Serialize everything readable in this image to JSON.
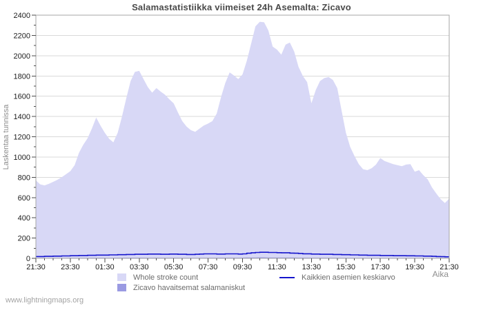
{
  "watermark": "www.lightningmaps.org",
  "chart_data": {
    "type": "area",
    "title": "Salamastatistiikka viimeiset 24h Asemalta: Zicavo",
    "xlabel": "Aika",
    "ylabel": "Laskentaa tunnissa",
    "ylim": [
      0,
      2400
    ],
    "y_tick_step": 200,
    "y_minor_step": 100,
    "x_minor_every": 2,
    "x_major_every": 8,
    "grid": "horizontal",
    "legend_position": "bottom",
    "x": [
      "21:30",
      "21:45",
      "22:00",
      "22:15",
      "22:30",
      "22:45",
      "23:00",
      "23:15",
      "23:30",
      "23:45",
      "00:00",
      "00:15",
      "00:30",
      "00:45",
      "01:00",
      "01:15",
      "01:30",
      "01:45",
      "02:00",
      "02:15",
      "02:30",
      "02:45",
      "03:00",
      "03:15",
      "03:30",
      "03:45",
      "04:00",
      "04:15",
      "04:30",
      "04:45",
      "05:00",
      "05:15",
      "05:30",
      "05:45",
      "06:00",
      "06:15",
      "06:30",
      "06:45",
      "07:00",
      "07:15",
      "07:30",
      "07:45",
      "08:00",
      "08:15",
      "08:30",
      "08:45",
      "09:00",
      "09:15",
      "09:30",
      "09:45",
      "10:00",
      "10:15",
      "10:30",
      "10:45",
      "11:00",
      "11:15",
      "11:30",
      "11:45",
      "12:00",
      "12:15",
      "12:30",
      "12:45",
      "13:00",
      "13:15",
      "13:30",
      "13:45",
      "14:00",
      "14:15",
      "14:30",
      "14:45",
      "15:00",
      "15:15",
      "15:30",
      "15:45",
      "16:00",
      "16:15",
      "16:30",
      "16:45",
      "17:00",
      "17:15",
      "17:30",
      "17:45",
      "18:00",
      "18:15",
      "18:30",
      "18:45",
      "19:00",
      "19:15",
      "19:30",
      "19:45",
      "20:00",
      "20:15",
      "20:30",
      "20:45",
      "21:00",
      "21:15",
      "21:30"
    ],
    "x_major_tick_labels": [
      "21:30",
      "23:30",
      "01:30",
      "03:30",
      "05:30",
      "07:30",
      "09:30",
      "11:30",
      "13:30",
      "15:30",
      "17:30",
      "19:30",
      "21:30"
    ],
    "series": [
      {
        "name": "Whole stroke count",
        "type": "area",
        "color": "#d8d8f6",
        "values": [
          770,
          730,
          720,
          735,
          755,
          775,
          800,
          830,
          860,
          920,
          1040,
          1120,
          1185,
          1280,
          1390,
          1310,
          1240,
          1180,
          1145,
          1240,
          1400,
          1580,
          1750,
          1840,
          1850,
          1770,
          1690,
          1635,
          1680,
          1645,
          1615,
          1570,
          1530,
          1440,
          1355,
          1300,
          1265,
          1248,
          1280,
          1310,
          1330,
          1355,
          1430,
          1590,
          1730,
          1835,
          1805,
          1770,
          1815,
          1950,
          2120,
          2290,
          2335,
          2330,
          2250,
          2090,
          2060,
          2010,
          2110,
          2130,
          2040,
          1890,
          1800,
          1740,
          1530,
          1660,
          1750,
          1780,
          1790,
          1760,
          1680,
          1460,
          1240,
          1100,
          1010,
          930,
          880,
          870,
          890,
          925,
          990,
          960,
          945,
          930,
          920,
          910,
          925,
          930,
          855,
          870,
          820,
          780,
          700,
          640,
          585,
          545,
          590
        ]
      },
      {
        "name": "Zicavo havaitsemat salamaniskut",
        "type": "area",
        "color": "#9a9ae2",
        "values": [
          3,
          3,
          3,
          4,
          4,
          4,
          4,
          4,
          5,
          5,
          5,
          5,
          5,
          6,
          6,
          6,
          5,
          5,
          5,
          6,
          6,
          7,
          7,
          7,
          7,
          7,
          6,
          6,
          7,
          6,
          6,
          6,
          6,
          6,
          5,
          5,
          5,
          5,
          5,
          6,
          6,
          6,
          6,
          7,
          7,
          7,
          7,
          7,
          7,
          8,
          9,
          9,
          10,
          10,
          9,
          9,
          8,
          8,
          8,
          8,
          8,
          7,
          7,
          7,
          6,
          6,
          6,
          6,
          6,
          6,
          6,
          5,
          5,
          5,
          4,
          4,
          4,
          4,
          4,
          4,
          4,
          4,
          4,
          4,
          4,
          4,
          4,
          4,
          3,
          3,
          3,
          3,
          3,
          3,
          2,
          2,
          2
        ]
      },
      {
        "name": "Kaikkien asemien keskiarvo",
        "type": "line",
        "color": "#1414cc",
        "values": [
          18,
          18,
          20,
          20,
          22,
          22,
          24,
          24,
          26,
          26,
          28,
          28,
          30,
          30,
          32,
          32,
          32,
          34,
          34,
          36,
          36,
          38,
          38,
          40,
          40,
          40,
          42,
          42,
          42,
          40,
          40,
          42,
          42,
          40,
          40,
          38,
          38,
          40,
          42,
          44,
          44,
          44,
          42,
          42,
          44,
          44,
          44,
          42,
          44,
          50,
          55,
          58,
          60,
          60,
          58,
          58,
          56,
          55,
          55,
          52,
          50,
          48,
          45,
          45,
          42,
          42,
          40,
          40,
          40,
          38,
          38,
          36,
          36,
          34,
          34,
          32,
          32,
          30,
          30,
          30,
          28,
          28,
          28,
          26,
          26,
          26,
          25,
          25,
          24,
          24,
          22,
          22,
          20,
          18,
          16,
          15,
          15
        ]
      }
    ]
  }
}
